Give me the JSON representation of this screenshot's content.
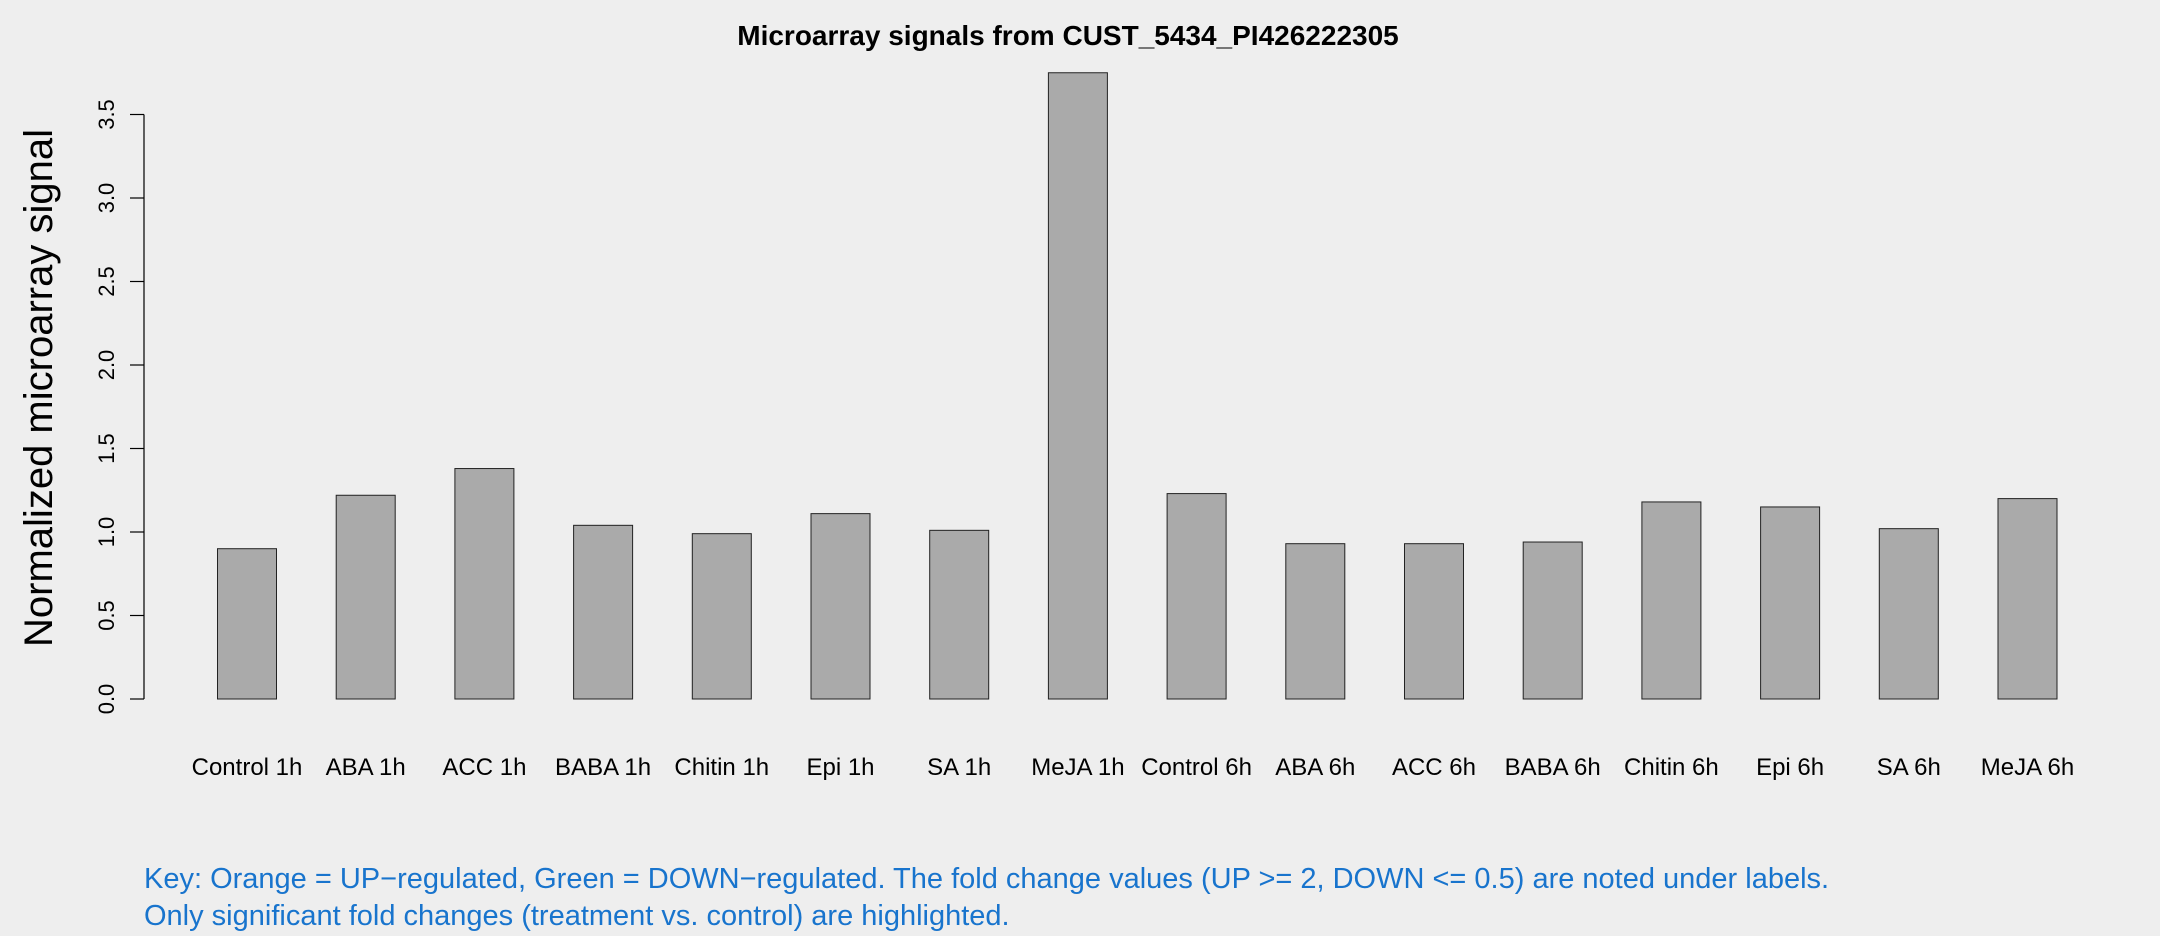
{
  "chart_data": {
    "type": "bar",
    "title": "Microarray signals from CUST_5434_PI426222305",
    "xlabel": "",
    "ylabel": "Normalized microarray signal",
    "categories": [
      "Control 1h",
      "ABA 1h",
      "ACC 1h",
      "BABA 1h",
      "Chitin 1h",
      "Epi 1h",
      "SA 1h",
      "MeJA 1h",
      "Control 6h",
      "ABA 6h",
      "ACC 6h",
      "BABA 6h",
      "Chitin 6h",
      "Epi 6h",
      "SA 6h",
      "MeJA 6h"
    ],
    "values": [
      0.9,
      1.22,
      1.38,
      1.04,
      0.99,
      1.11,
      1.01,
      3.75,
      1.23,
      0.93,
      0.93,
      0.94,
      1.18,
      1.15,
      1.02,
      1.2
    ],
    "yticks": [
      "0.0",
      "0.5",
      "1.0",
      "1.5",
      "2.0",
      "2.5",
      "3.0",
      "3.5"
    ],
    "ylim": [
      0,
      3.5
    ],
    "grid": false,
    "colors": {
      "bar": "#aaaaaa",
      "bar_stroke": "#222222",
      "background": "#eeeeee",
      "key_text": "#1874cd"
    }
  },
  "key": {
    "line1": "Key: Orange = UP−regulated, Green = DOWN−regulated. The fold change values (UP >= 2, DOWN <= 0.5) are noted under labels.",
    "line2": "Only significant fold changes (treatment vs. control) are highlighted."
  }
}
